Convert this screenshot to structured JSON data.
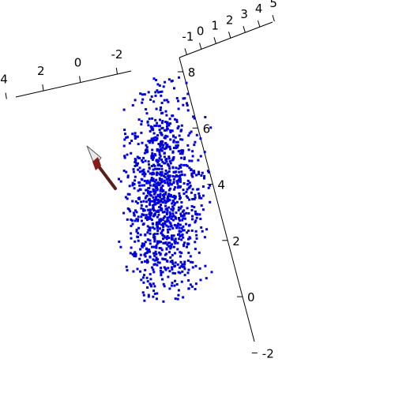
{
  "chart_data": {
    "type": "scatter",
    "dimensions": 3,
    "marker_color": "#0000dd",
    "axis_color": "#000000",
    "point_count": 1200,
    "point_distribution": {
      "center": [
        0,
        0,
        5
      ],
      "spread": [
        0.6,
        0.5,
        1.1
      ]
    },
    "axes": [
      {
        "name": "top-axis",
        "range": [
          -1,
          4
        ],
        "ticks": [
          "-1",
          "0",
          "1",
          "2",
          "3",
          "4",
          "5"
        ]
      },
      {
        "name": "left-axis",
        "range": [
          -2,
          4
        ],
        "ticks": [
          "4",
          "2",
          "0",
          "-2"
        ]
      },
      {
        "name": "vertical-axis",
        "range": [
          -2,
          8
        ],
        "ticks": [
          "8",
          "6",
          "4",
          "2",
          "0",
          "-2"
        ]
      }
    ],
    "camera_widget": {
      "icon": "arrow-icon",
      "shaft_color": "#5a1f1a",
      "head_color": "#e0e0e0"
    }
  }
}
